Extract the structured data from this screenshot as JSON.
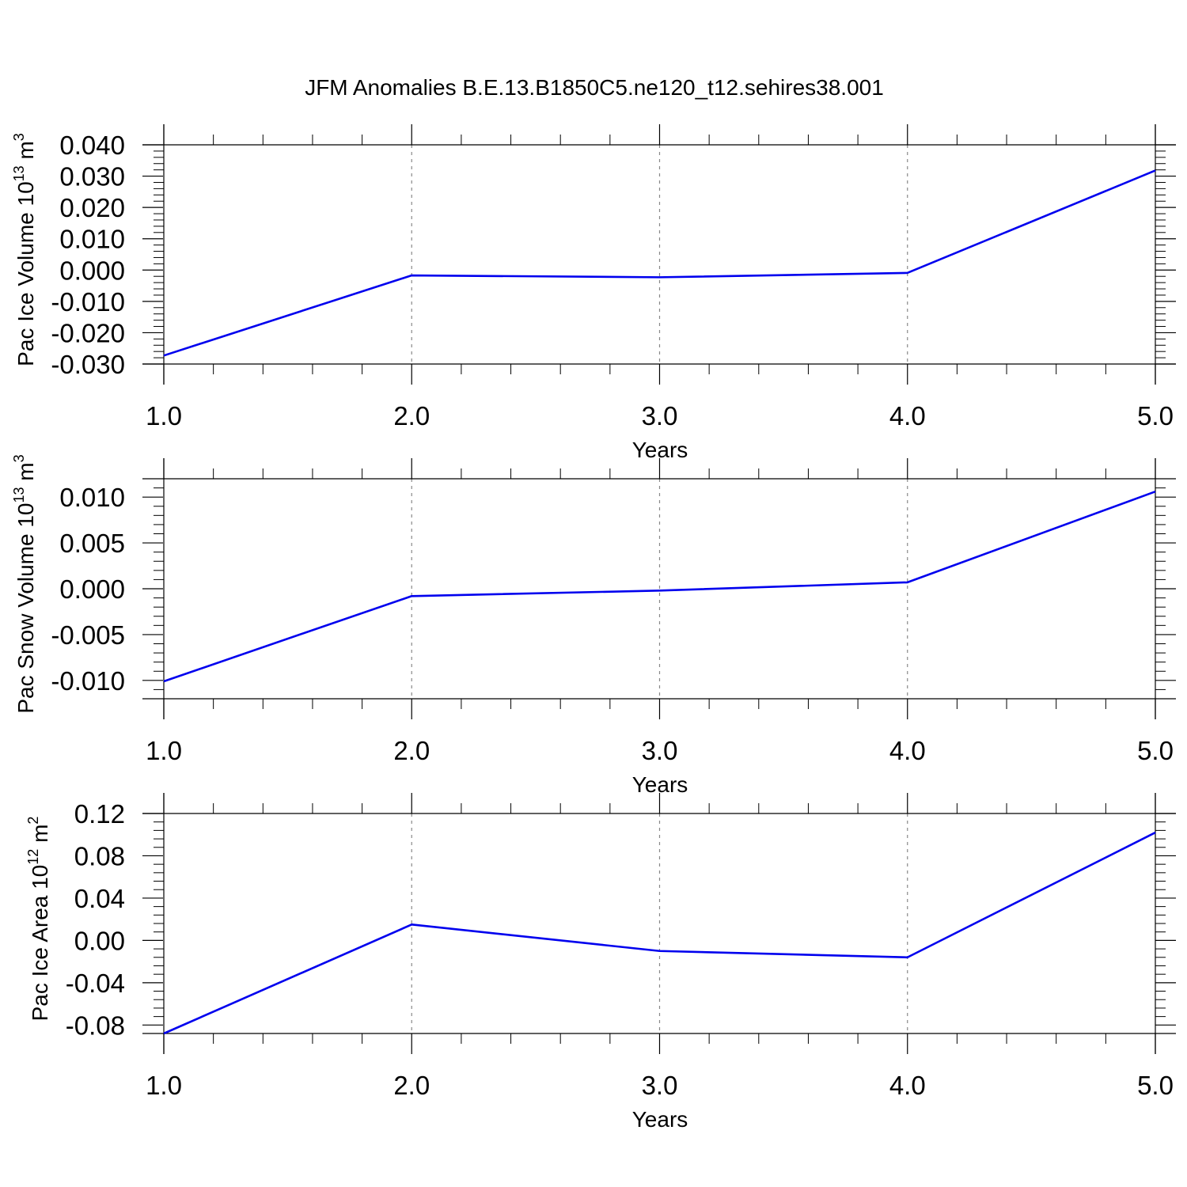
{
  "figure": {
    "title": "JFM Anomalies B.E.13.B1850C5.ne120_t12.sehires38.001"
  },
  "colors": {
    "series": "#0000ee",
    "axis": "#000000",
    "gridline": "#888888"
  },
  "chart_data": [
    {
      "type": "line",
      "xlabel": "Years",
      "ylabel": {
        "text": "Pac Ice Volume 10",
        "sup": "13",
        "unit": " m",
        "unit_sup": "3"
      },
      "xlim": [
        1.0,
        5.0
      ],
      "ylim": [
        -0.03,
        0.04
      ],
      "x_ticks": [
        "1.0",
        "2.0",
        "3.0",
        "4.0",
        "5.0"
      ],
      "y_ticks": [
        "0.040",
        "0.030",
        "0.020",
        "0.010",
        "0.000",
        "-0.010",
        "-0.020",
        "-0.030"
      ],
      "x": [
        1.0,
        2.0,
        3.0,
        4.0,
        5.0
      ],
      "y": [
        -0.0273,
        -0.0017,
        -0.0023,
        -0.0009,
        0.0318
      ],
      "vertical_dashed_grid": true
    },
    {
      "type": "line",
      "xlabel": "Years",
      "ylabel": {
        "text": "Pac Snow Volume 10",
        "sup": "13",
        "unit": " m",
        "unit_sup": "3"
      },
      "xlim": [
        1.0,
        5.0
      ],
      "ylim": [
        -0.012,
        0.012
      ],
      "x_ticks": [
        "1.0",
        "2.0",
        "3.0",
        "4.0",
        "5.0"
      ],
      "y_ticks": [
        "0.010",
        "0.005",
        "0.000",
        "-0.005",
        "-0.010"
      ],
      "x": [
        1.0,
        2.0,
        3.0,
        4.0,
        5.0
      ],
      "y": [
        -0.0101,
        -0.0008,
        -0.0002,
        0.0007,
        0.0106
      ],
      "vertical_dashed_grid": true
    },
    {
      "type": "line",
      "xlabel": "Years",
      "ylabel": {
        "text": "Pac Ice Area 10",
        "sup": "12",
        "unit": " m",
        "unit_sup": "2"
      },
      "xlim": [
        1.0,
        5.0
      ],
      "ylim": [
        -0.088,
        0.12
      ],
      "x_ticks": [
        "1.0",
        "2.0",
        "3.0",
        "4.0",
        "5.0"
      ],
      "y_ticks": [
        "0.12",
        "0.08",
        "0.04",
        "0.00",
        "-0.04",
        "-0.08"
      ],
      "x": [
        1.0,
        2.0,
        3.0,
        4.0,
        5.0
      ],
      "y": [
        -0.088,
        0.015,
        -0.01,
        -0.016,
        0.102
      ],
      "vertical_dashed_grid": true
    }
  ]
}
